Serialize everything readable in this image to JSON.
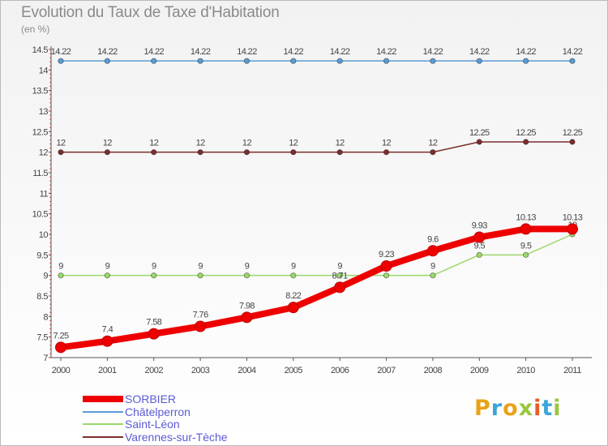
{
  "header": {
    "title": "Evolution du Taux de Taxe d'Habitation",
    "subtitle": "(en %)"
  },
  "logo": {
    "text": "Proxiti",
    "colors": [
      "#e8a318",
      "#3aa6d8",
      "#e8a318",
      "#9ac63c",
      "#e85c2a",
      "#3aa6d8",
      "#9ac63c"
    ]
  },
  "chart_data": {
    "type": "line",
    "x": [
      "2000",
      "2001",
      "2002",
      "2003",
      "2004",
      "2005",
      "2006",
      "2007",
      "2008",
      "2009",
      "2010",
      "2011"
    ],
    "ylim": [
      7,
      14.5
    ],
    "yticks": [
      "7",
      "7.5",
      "8",
      "8.5",
      "9",
      "9.5",
      "10",
      "10.5",
      "11",
      "11.5",
      "12",
      "12.5",
      "13",
      "13.5",
      "14",
      "14.5"
    ],
    "grid": false,
    "legend_position": "bottom-left",
    "series": [
      {
        "name": "Châtelperron",
        "color": "#5b9bd5",
        "values": [
          14.22,
          14.22,
          14.22,
          14.22,
          14.22,
          14.22,
          14.22,
          14.22,
          14.22,
          14.22,
          14.22,
          14.22
        ],
        "labels": [
          "14.22",
          "14.22",
          "14.22",
          "14.22",
          "14.22",
          "14.22",
          "14.22",
          "14.22",
          "14.22",
          "14.22",
          "14.22",
          "14.22"
        ]
      },
      {
        "name": "Varennes-sur-Tèche",
        "color": "#7b2e2e",
        "values": [
          12,
          12,
          12,
          12,
          12,
          12,
          12,
          12,
          12,
          12.25,
          12.25,
          12.25
        ],
        "labels": [
          "12",
          "12",
          "12",
          "12",
          "12",
          "12",
          "12",
          "12",
          "12",
          "12.25",
          "12.25",
          "12.25"
        ]
      },
      {
        "name": "Saint-Léon",
        "color": "#9bd86a",
        "values": [
          9,
          9,
          9,
          9,
          9,
          9,
          9,
          9,
          9,
          9.5,
          9.5,
          10
        ],
        "labels": [
          "9",
          "9",
          "9",
          "9",
          "9",
          "9",
          "9",
          "9",
          "9",
          "9.5",
          "9.5",
          "10"
        ]
      },
      {
        "name": "SORBIER",
        "color": "#ee0000",
        "values": [
          7.25,
          7.4,
          7.58,
          7.76,
          7.98,
          8.22,
          8.71,
          9.23,
          9.6,
          9.93,
          10.13,
          10.13
        ],
        "labels": [
          "7.25",
          "7.4",
          "7.58",
          "7.76",
          "7.98",
          "8.22",
          "8.71",
          "9.23",
          "9.6",
          "9.93",
          "10.13",
          "10.13"
        ]
      }
    ]
  },
  "legend": [
    {
      "label": "SORBIER",
      "color": "#ee0000",
      "thickness": 8
    },
    {
      "label": "Châtelperron",
      "color": "#5b9bd5",
      "thickness": 2
    },
    {
      "label": "Saint-Léon",
      "color": "#9bd86a",
      "thickness": 2
    },
    {
      "label": "Varennes-sur-Tèche",
      "color": "#7b2e2e",
      "thickness": 2
    }
  ]
}
